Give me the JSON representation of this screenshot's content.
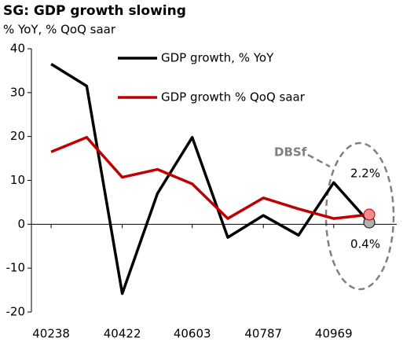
{
  "chart_data": {
    "type": "line",
    "title": "SG: GDP growth slowing",
    "subtitle": "% YoY, % QoQ saar",
    "x": [
      40238,
      40330,
      40422,
      40513,
      40603,
      40695,
      40787,
      40878,
      40969,
      41061
    ],
    "series": [
      {
        "name": "GDP growth, % YoY",
        "color": "#000000",
        "marker_color": "#b0b0b0",
        "values": [
          36.5,
          31.5,
          -15.8,
          7,
          19.8,
          -3,
          2,
          -2.5,
          9.5,
          0.4
        ],
        "value_labels": [
          null,
          null,
          null,
          null,
          null,
          null,
          null,
          null,
          null,
          "0.4%"
        ]
      },
      {
        "name": "GDP growth % QoQ saar",
        "color": "#c00000",
        "marker_color": "#f08c8c",
        "values": [
          16.5,
          19.8,
          10.7,
          12.5,
          9.2,
          1.3,
          6,
          3.5,
          1.3,
          2.2
        ],
        "value_labels": [
          null,
          null,
          null,
          null,
          null,
          null,
          null,
          null,
          null,
          "2.2%"
        ]
      }
    ],
    "annotations": [
      "DBSf"
    ],
    "xlim": [
      40187,
      41132
    ],
    "xticks": [
      40238,
      40422,
      40603,
      40787,
      40969
    ],
    "ylim": [
      -20,
      40
    ],
    "yticks": [
      -20,
      -10,
      0,
      10,
      20,
      30,
      40
    ],
    "legend": "upper right",
    "grid": false
  }
}
